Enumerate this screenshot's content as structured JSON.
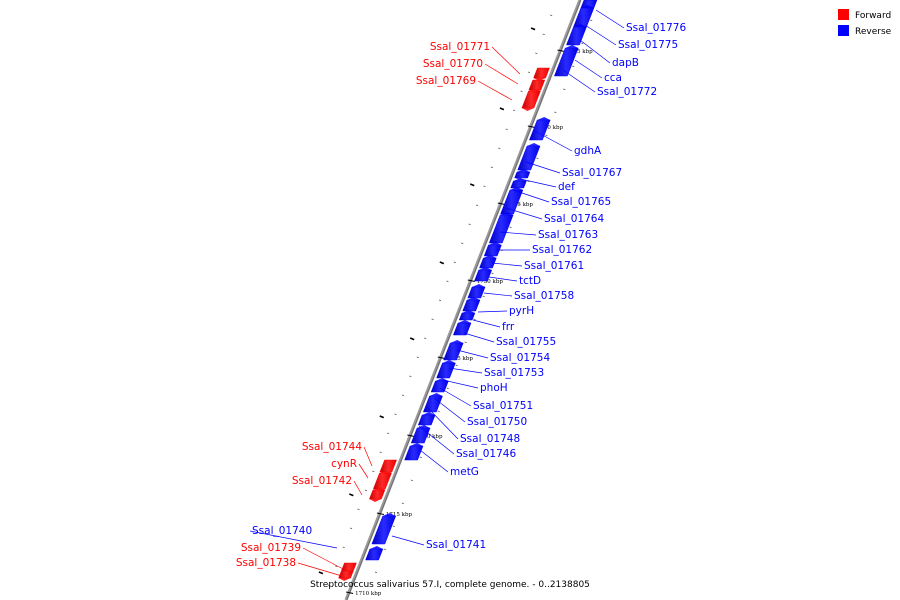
{
  "caption": "Streptococcus salivarius 57.I, complete genome. - 0..2138805",
  "legend": [
    {
      "label": "Forward",
      "color": "#ff0000"
    },
    {
      "label": "Reverse",
      "color": "#0000ff"
    }
  ],
  "colors": {
    "forward": "#ff0000",
    "reverse": "#0000ff",
    "backbone": "#888888"
  },
  "scale_labels": [
    "1745 kbp",
    "1740 kbp",
    "1735 kbp",
    "1730 kbp",
    "1725 kbp",
    "1720 kbp",
    "1715 kbp",
    "1710 kbp"
  ],
  "forward_labels": [
    "Ssal_01771",
    "Ssal_01770",
    "Ssal_01769",
    "Ssal_01744",
    "cynR",
    "Ssal_01742",
    "Ssal_01739",
    "Ssal_01738"
  ],
  "reverse_labels": [
    "Ssal_01776",
    "Ssal_01775",
    "dapB",
    "cca",
    "Ssal_01772",
    "gdhA",
    "Ssal_01767",
    "def",
    "Ssal_01765",
    "Ssal_01764",
    "Ssal_01763",
    "Ssal_01762",
    "Ssal_01761",
    "tctD",
    "Ssal_01758",
    "pyrH",
    "frr",
    "Ssal_01755",
    "Ssal_01754",
    "Ssal_01753",
    "phoH",
    "Ssal_01751",
    "Ssal_01750",
    "Ssal_01748",
    "Ssal_01746",
    "metG",
    "Ssal_01740",
    "Ssal_01741"
  ]
}
